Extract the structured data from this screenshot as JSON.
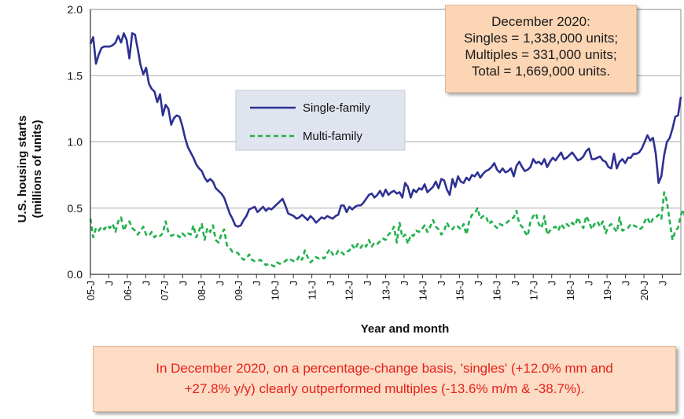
{
  "chart_data": {
    "type": "line",
    "xlabel": "Year and month",
    "ylabel_line1": "U.S. housing starts",
    "ylabel_line2": "(millions of units)",
    "ylim": [
      0,
      2.0
    ],
    "yticks": [
      "0.0",
      "0.5",
      "1.0",
      "1.5",
      "2.0"
    ],
    "x_tick_labels": [
      "05-J",
      "J",
      "06-J",
      "J",
      "07-J",
      "J",
      "08-J",
      "J",
      "09-J",
      "J",
      "10-J",
      "J",
      "11-J",
      "J",
      "12-J",
      "J",
      "13-J",
      "J",
      "14-J",
      "J",
      "15-J",
      "J",
      "16-J",
      "J",
      "17-J",
      "J",
      "18-J",
      "J",
      "19-J",
      "J",
      "20-J",
      "J"
    ],
    "x_start": "2005-01",
    "x_end": "2020-12",
    "grid": true,
    "legend_position": "upper-middle",
    "series": [
      {
        "name": "Single-family",
        "color": "#2e3192",
        "style": "solid",
        "values": [
          1.74,
          1.79,
          1.59,
          1.66,
          1.71,
          1.72,
          1.72,
          1.72,
          1.73,
          1.75,
          1.8,
          1.75,
          1.82,
          1.77,
          1.63,
          1.82,
          1.81,
          1.7,
          1.58,
          1.51,
          1.56,
          1.44,
          1.4,
          1.38,
          1.3,
          1.36,
          1.2,
          1.28,
          1.25,
          1.13,
          1.18,
          1.2,
          1.19,
          1.12,
          1.03,
          0.96,
          0.92,
          0.88,
          0.83,
          0.8,
          0.78,
          0.73,
          0.7,
          0.72,
          0.7,
          0.65,
          0.63,
          0.61,
          0.58,
          0.52,
          0.46,
          0.42,
          0.37,
          0.36,
          0.37,
          0.41,
          0.44,
          0.49,
          0.5,
          0.51,
          0.47,
          0.49,
          0.51,
          0.48,
          0.5,
          0.49,
          0.51,
          0.53,
          0.55,
          0.57,
          0.52,
          0.46,
          0.45,
          0.44,
          0.42,
          0.43,
          0.45,
          0.43,
          0.41,
          0.44,
          0.42,
          0.39,
          0.41,
          0.43,
          0.42,
          0.44,
          0.43,
          0.42,
          0.44,
          0.45,
          0.52,
          0.52,
          0.47,
          0.51,
          0.49,
          0.51,
          0.52,
          0.52,
          0.54,
          0.57,
          0.6,
          0.61,
          0.58,
          0.6,
          0.63,
          0.59,
          0.64,
          0.6,
          0.62,
          0.63,
          0.61,
          0.62,
          0.58,
          0.69,
          0.66,
          0.58,
          0.64,
          0.62,
          0.65,
          0.64,
          0.68,
          0.62,
          0.64,
          0.66,
          0.7,
          0.65,
          0.72,
          0.71,
          0.64,
          0.6,
          0.72,
          0.66,
          0.74,
          0.7,
          0.69,
          0.73,
          0.71,
          0.75,
          0.74,
          0.77,
          0.73,
          0.76,
          0.78,
          0.79,
          0.81,
          0.84,
          0.79,
          0.77,
          0.8,
          0.77,
          0.78,
          0.8,
          0.74,
          0.82,
          0.85,
          0.81,
          0.78,
          0.79,
          0.81,
          0.87,
          0.84,
          0.85,
          0.83,
          0.87,
          0.81,
          0.85,
          0.88,
          0.86,
          0.89,
          0.92,
          0.87,
          0.88,
          0.9,
          0.92,
          0.89,
          0.86,
          0.87,
          0.89,
          0.93,
          0.95,
          0.87,
          0.87,
          0.88,
          0.89,
          0.86,
          0.85,
          0.81,
          0.8,
          0.91,
          0.8,
          0.85,
          0.87,
          0.84,
          0.88,
          0.88,
          0.91,
          0.91,
          0.92,
          0.95,
          1.0,
          1.05,
          1.01,
          1.03,
          0.91,
          0.69,
          0.74,
          0.9,
          1.0,
          1.03,
          1.1,
          1.19,
          1.2,
          1.34
        ]
      },
      {
        "name": "Multi-family",
        "color": "#22b14c",
        "style": "dashed",
        "values": [
          0.42,
          0.28,
          0.35,
          0.33,
          0.36,
          0.34,
          0.37,
          0.35,
          0.38,
          0.32,
          0.4,
          0.43,
          0.33,
          0.38,
          0.4,
          0.35,
          0.33,
          0.3,
          0.33,
          0.36,
          0.3,
          0.29,
          0.32,
          0.28,
          0.3,
          0.29,
          0.31,
          0.4,
          0.32,
          0.29,
          0.3,
          0.3,
          0.28,
          0.31,
          0.29,
          0.31,
          0.3,
          0.37,
          0.28,
          0.33,
          0.38,
          0.26,
          0.35,
          0.32,
          0.37,
          0.26,
          0.24,
          0.3,
          0.34,
          0.22,
          0.2,
          0.17,
          0.17,
          0.16,
          0.13,
          0.11,
          0.12,
          0.15,
          0.11,
          0.1,
          0.1,
          0.11,
          0.09,
          0.07,
          0.08,
          0.07,
          0.06,
          0.09,
          0.08,
          0.09,
          0.1,
          0.12,
          0.11,
          0.1,
          0.1,
          0.14,
          0.11,
          0.18,
          0.13,
          0.09,
          0.11,
          0.13,
          0.12,
          0.13,
          0.12,
          0.16,
          0.19,
          0.15,
          0.14,
          0.18,
          0.17,
          0.15,
          0.17,
          0.18,
          0.22,
          0.19,
          0.23,
          0.2,
          0.23,
          0.21,
          0.26,
          0.21,
          0.24,
          0.23,
          0.25,
          0.27,
          0.26,
          0.3,
          0.32,
          0.36,
          0.24,
          0.39,
          0.28,
          0.3,
          0.23,
          0.3,
          0.29,
          0.33,
          0.32,
          0.34,
          0.37,
          0.32,
          0.36,
          0.41,
          0.36,
          0.34,
          0.3,
          0.33,
          0.39,
          0.35,
          0.34,
          0.37,
          0.36,
          0.34,
          0.38,
          0.3,
          0.4,
          0.45,
          0.46,
          0.5,
          0.42,
          0.44,
          0.44,
          0.38,
          0.4,
          0.37,
          0.35,
          0.38,
          0.37,
          0.38,
          0.4,
          0.42,
          0.43,
          0.48,
          0.38,
          0.36,
          0.32,
          0.29,
          0.4,
          0.44,
          0.46,
          0.38,
          0.35,
          0.44,
          0.3,
          0.33,
          0.35,
          0.36,
          0.33,
          0.38,
          0.35,
          0.38,
          0.36,
          0.39,
          0.37,
          0.43,
          0.38,
          0.35,
          0.44,
          0.4,
          0.34,
          0.38,
          0.4,
          0.36,
          0.4,
          0.31,
          0.36,
          0.38,
          0.35,
          0.32,
          0.43,
          0.33,
          0.34,
          0.35,
          0.38,
          0.37,
          0.36,
          0.34,
          0.35,
          0.4,
          0.43,
          0.38,
          0.42,
          0.43,
          0.45,
          0.42,
          0.62,
          0.55,
          0.4,
          0.26,
          0.33,
          0.35,
          0.45,
          0.49,
          0.36,
          0.34,
          0.37,
          0.35,
          0.39,
          0.33
        ]
      }
    ]
  },
  "top_note": {
    "line1": "December 2020:",
    "line2": "Singles = 1,338,000 units;",
    "line3": "Multiples = 331,000 units;",
    "line4": "Total = 1,669,000 units."
  },
  "bottom_note": {
    "line1": "In December 2020, on a percentage-change basis, 'singles' (+12.0% mm and",
    "line2": "+27.8% y/y) clearly outperformed multiples (-13.6% m/m & -38.7%)."
  },
  "colors": {
    "plot_background": "#ffffff",
    "grid": "#aaaaaa",
    "legend_background": "#dfe4ee",
    "note_background": "#fcd5b4",
    "bottom_note_text": "#e8201c"
  }
}
